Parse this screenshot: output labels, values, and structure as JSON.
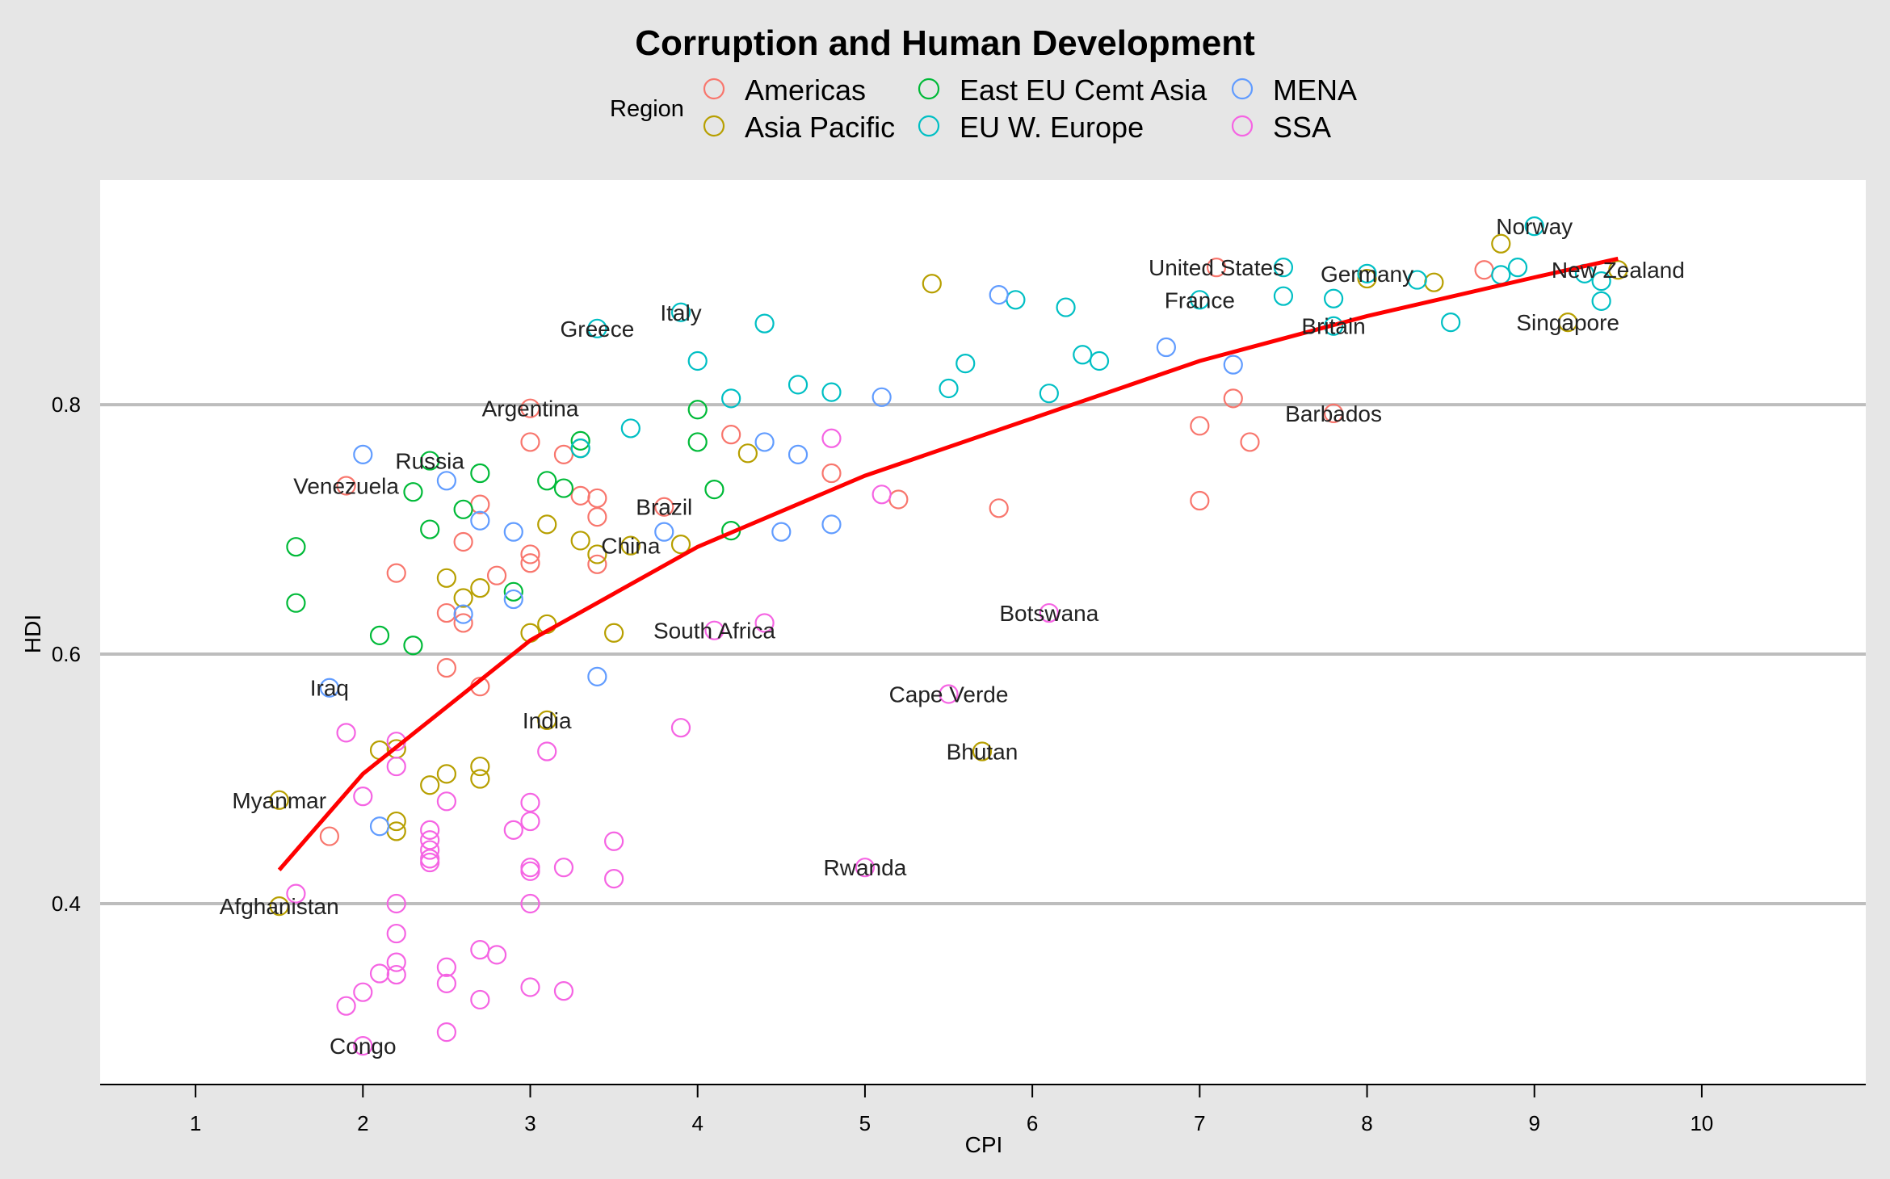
{
  "chart_data": {
    "type": "scatter",
    "title": "Corruption and Human Development",
    "xlabel": "CPI",
    "ylabel": "HDI",
    "xlim": [
      0.43,
      10.98
    ],
    "ylim": [
      0.255,
      0.98
    ],
    "xticks": [
      1,
      2,
      3,
      4,
      5,
      6,
      7,
      8,
      9,
      10
    ],
    "yticks": [
      0.4,
      0.6,
      0.8
    ],
    "grid": "horizontal major",
    "legend": {
      "title": "Region",
      "placement": "top",
      "entries": [
        {
          "name": "Americas",
          "color": "#F8766D"
        },
        {
          "name": "Asia Pacific",
          "color": "#B79F00"
        },
        {
          "name": "East EU Cemt Asia",
          "color": "#00BA38"
        },
        {
          "name": "EU W. Europe",
          "color": "#00BFC4"
        },
        {
          "name": "MENA",
          "color": "#619CFF"
        },
        {
          "name": "SSA",
          "color": "#F564E3"
        }
      ]
    },
    "trend_line": {
      "color": "#ff0000",
      "x_range": [
        1.5,
        9.5
      ],
      "form": "logarithmic",
      "points": [
        [
          1.5,
          0.427
        ],
        [
          2.0,
          0.504
        ],
        [
          3.0,
          0.611
        ],
        [
          4.0,
          0.686
        ],
        [
          5.0,
          0.743
        ],
        [
          6.0,
          0.789
        ],
        [
          7.0,
          0.835
        ],
        [
          8.0,
          0.871
        ],
        [
          9.0,
          0.902
        ],
        [
          9.5,
          0.917
        ]
      ]
    },
    "series": [
      {
        "name": "Americas",
        "points": [
          [
            7.1,
            0.91
          ],
          [
            3.0,
            0.797
          ],
          [
            1.9,
            0.735
          ],
          [
            3.8,
            0.718
          ],
          [
            7.8,
            0.793
          ],
          [
            7.0,
            0.783
          ],
          [
            7.2,
            0.805
          ],
          [
            7.3,
            0.77
          ],
          [
            7.0,
            0.723
          ],
          [
            8.7,
            0.908
          ],
          [
            3.0,
            0.77
          ],
          [
            3.2,
            0.76
          ],
          [
            4.2,
            0.776
          ],
          [
            2.7,
            0.72
          ],
          [
            3.3,
            0.727
          ],
          [
            3.4,
            0.725
          ],
          [
            3.4,
            0.71
          ],
          [
            4.8,
            0.745
          ],
          [
            5.8,
            0.717
          ],
          [
            5.2,
            0.724
          ],
          [
            2.2,
            0.665
          ],
          [
            2.6,
            0.69
          ],
          [
            3.0,
            0.68
          ],
          [
            3.0,
            0.673
          ],
          [
            3.4,
            0.672
          ],
          [
            2.8,
            0.663
          ],
          [
            2.5,
            0.633
          ],
          [
            2.6,
            0.625
          ],
          [
            2.5,
            0.589
          ],
          [
            2.7,
            0.574
          ],
          [
            1.8,
            0.454
          ]
        ]
      },
      {
        "name": "Asia Pacific",
        "points": [
          [
            9.5,
            0.908
          ],
          [
            8.8,
            0.929
          ],
          [
            8.0,
            0.901
          ],
          [
            8.4,
            0.898
          ],
          [
            9.2,
            0.866
          ],
          [
            5.4,
            0.897
          ],
          [
            4.3,
            0.761
          ],
          [
            3.3,
            0.765
          ],
          [
            3.1,
            0.704
          ],
          [
            3.6,
            0.687
          ],
          [
            3.9,
            0.688
          ],
          [
            3.3,
            0.691
          ],
          [
            3.4,
            0.68
          ],
          [
            2.7,
            0.653
          ],
          [
            2.5,
            0.661
          ],
          [
            2.6,
            0.645
          ],
          [
            3.0,
            0.617
          ],
          [
            3.1,
            0.624
          ],
          [
            3.5,
            0.617
          ],
          [
            5.7,
            0.522
          ],
          [
            3.1,
            0.547
          ],
          [
            2.1,
            0.523
          ],
          [
            2.2,
            0.524
          ],
          [
            2.5,
            0.504
          ],
          [
            2.4,
            0.495
          ],
          [
            2.7,
            0.51
          ],
          [
            2.7,
            0.5
          ],
          [
            2.2,
            0.466
          ],
          [
            2.2,
            0.458
          ],
          [
            1.5,
            0.483
          ],
          [
            1.5,
            0.398
          ]
        ]
      },
      {
        "name": "East EU Cemt Asia",
        "points": [
          [
            4.0,
            0.796
          ],
          [
            4.0,
            0.77
          ],
          [
            4.1,
            0.732
          ],
          [
            3.3,
            0.771
          ],
          [
            3.1,
            0.739
          ],
          [
            3.2,
            0.733
          ],
          [
            2.7,
            0.745
          ],
          [
            2.4,
            0.755
          ],
          [
            2.3,
            0.73
          ],
          [
            2.6,
            0.716
          ],
          [
            2.4,
            0.7
          ],
          [
            4.2,
            0.699
          ],
          [
            1.6,
            0.686
          ],
          [
            1.6,
            0.641
          ],
          [
            2.9,
            0.65
          ],
          [
            2.1,
            0.615
          ],
          [
            2.3,
            0.607
          ]
        ]
      },
      {
        "name": "EU W. Europe",
        "points": [
          [
            9.0,
            0.943
          ],
          [
            9.4,
            0.899
          ],
          [
            9.4,
            0.883
          ],
          [
            9.3,
            0.905
          ],
          [
            8.9,
            0.91
          ],
          [
            8.8,
            0.904
          ],
          [
            8.3,
            0.9
          ],
          [
            8.0,
            0.905
          ],
          [
            7.5,
            0.91
          ],
          [
            7.5,
            0.887
          ],
          [
            7.8,
            0.885
          ],
          [
            7.8,
            0.863
          ],
          [
            8.5,
            0.866
          ],
          [
            7.0,
            0.884
          ],
          [
            6.2,
            0.878
          ],
          [
            5.9,
            0.884
          ],
          [
            6.3,
            0.84
          ],
          [
            6.4,
            0.835
          ],
          [
            6.1,
            0.809
          ],
          [
            5.6,
            0.833
          ],
          [
            5.5,
            0.813
          ],
          [
            4.8,
            0.81
          ],
          [
            4.6,
            0.816
          ],
          [
            4.2,
            0.805
          ],
          [
            4.0,
            0.835
          ],
          [
            4.4,
            0.865
          ],
          [
            3.9,
            0.874
          ],
          [
            3.4,
            0.861
          ],
          [
            3.6,
            0.781
          ],
          [
            3.3,
            0.765
          ]
        ]
      },
      {
        "name": "MENA",
        "points": [
          [
            5.8,
            0.888
          ],
          [
            6.8,
            0.846
          ],
          [
            7.2,
            0.832
          ],
          [
            5.1,
            0.806
          ],
          [
            4.4,
            0.77
          ],
          [
            4.6,
            0.76
          ],
          [
            2.0,
            0.76
          ],
          [
            2.5,
            0.739
          ],
          [
            2.7,
            0.707
          ],
          [
            2.9,
            0.698
          ],
          [
            3.8,
            0.698
          ],
          [
            4.5,
            0.698
          ],
          [
            4.8,
            0.704
          ],
          [
            2.9,
            0.644
          ],
          [
            2.6,
            0.632
          ],
          [
            3.4,
            0.582
          ],
          [
            1.8,
            0.573
          ],
          [
            2.1,
            0.462
          ]
        ]
      },
      {
        "name": "SSA",
        "points": [
          [
            4.8,
            0.773
          ],
          [
            5.1,
            0.728
          ],
          [
            6.1,
            0.633
          ],
          [
            4.4,
            0.625
          ],
          [
            4.1,
            0.619
          ],
          [
            5.5,
            0.568
          ],
          [
            3.9,
            0.541
          ],
          [
            3.1,
            0.522
          ],
          [
            1.9,
            0.537
          ],
          [
            2.2,
            0.53
          ],
          [
            2.2,
            0.51
          ],
          [
            2.0,
            0.486
          ],
          [
            2.5,
            0.482
          ],
          [
            3.0,
            0.481
          ],
          [
            3.0,
            0.466
          ],
          [
            2.9,
            0.459
          ],
          [
            2.4,
            0.459
          ],
          [
            2.4,
            0.451
          ],
          [
            2.4,
            0.443
          ],
          [
            2.4,
            0.436
          ],
          [
            2.4,
            0.433
          ],
          [
            3.5,
            0.45
          ],
          [
            3.0,
            0.429
          ],
          [
            3.0,
            0.426
          ],
          [
            3.2,
            0.429
          ],
          [
            3.5,
            0.42
          ],
          [
            5.0,
            0.429
          ],
          [
            1.6,
            0.408
          ],
          [
            2.2,
            0.4
          ],
          [
            3.0,
            0.4
          ],
          [
            2.2,
            0.376
          ],
          [
            2.7,
            0.363
          ],
          [
            2.8,
            0.359
          ],
          [
            2.2,
            0.353
          ],
          [
            2.5,
            0.349
          ],
          [
            2.1,
            0.344
          ],
          [
            2.2,
            0.343
          ],
          [
            2.5,
            0.336
          ],
          [
            2.0,
            0.329
          ],
          [
            3.0,
            0.333
          ],
          [
            3.2,
            0.33
          ],
          [
            2.7,
            0.323
          ],
          [
            1.9,
            0.318
          ],
          [
            2.5,
            0.297
          ],
          [
            2.0,
            0.286
          ]
        ]
      }
    ],
    "labels": [
      {
        "text": "Norway",
        "x": 9.0,
        "y": 0.943
      },
      {
        "text": "United States",
        "x": 7.1,
        "y": 0.91
      },
      {
        "text": "New Zealand",
        "x": 9.5,
        "y": 0.908
      },
      {
        "text": "Germany",
        "x": 8.0,
        "y": 0.905
      },
      {
        "text": "France",
        "x": 7.0,
        "y": 0.884
      },
      {
        "text": "Italy",
        "x": 3.9,
        "y": 0.874
      },
      {
        "text": "Greece",
        "x": 3.4,
        "y": 0.861
      },
      {
        "text": "Britain",
        "x": 7.8,
        "y": 0.863
      },
      {
        "text": "Singapore",
        "x": 9.2,
        "y": 0.866
      },
      {
        "text": "Argentina",
        "x": 3.0,
        "y": 0.797
      },
      {
        "text": "Barbados",
        "x": 7.8,
        "y": 0.793
      },
      {
        "text": "Russia",
        "x": 2.4,
        "y": 0.755
      },
      {
        "text": "Venezuela",
        "x": 1.9,
        "y": 0.735
      },
      {
        "text": "Brazil",
        "x": 3.8,
        "y": 0.718
      },
      {
        "text": "China",
        "x": 3.6,
        "y": 0.687
      },
      {
        "text": "Botswana",
        "x": 6.1,
        "y": 0.633
      },
      {
        "text": "South Africa",
        "x": 4.1,
        "y": 0.619
      },
      {
        "text": "Iraq",
        "x": 1.8,
        "y": 0.573
      },
      {
        "text": "Cape Verde",
        "x": 5.5,
        "y": 0.568
      },
      {
        "text": "India",
        "x": 3.1,
        "y": 0.547
      },
      {
        "text": "Bhutan",
        "x": 5.7,
        "y": 0.522
      },
      {
        "text": "Myanmar",
        "x": 1.5,
        "y": 0.483
      },
      {
        "text": "Rwanda",
        "x": 5.0,
        "y": 0.429
      },
      {
        "text": "Afghanistan",
        "x": 1.5,
        "y": 0.398
      },
      {
        "text": "Congo",
        "x": 2.0,
        "y": 0.286
      }
    ]
  }
}
